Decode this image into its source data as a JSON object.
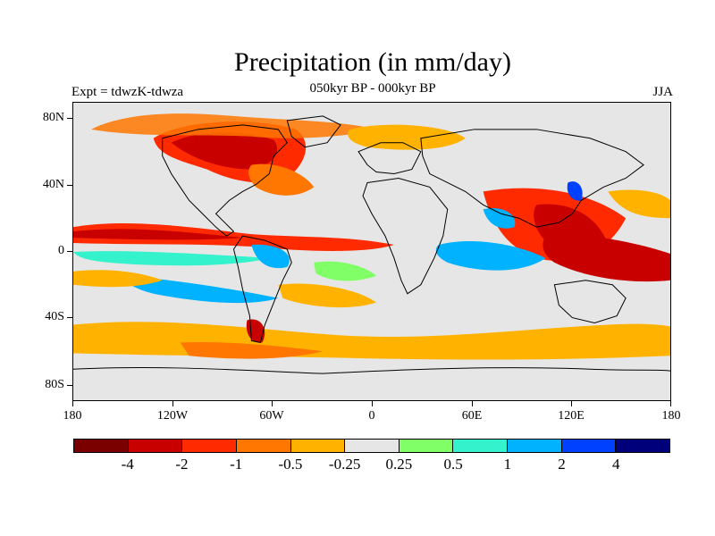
{
  "title": "Precipitation (in mm/day)",
  "subtitle": "050kyr BP - 000kyr BP",
  "left_label": "Expt = tdwzK-tdwza",
  "right_label": "JJA",
  "lat_labels": [
    "80N",
    "40N",
    "0",
    "40S",
    "80S"
  ],
  "lon_labels": [
    "180",
    "120W",
    "60W",
    "0",
    "60E",
    "120E",
    "180"
  ],
  "colorbar": {
    "colors": [
      "#7a0000",
      "#c80000",
      "#ff2a00",
      "#ff7700",
      "#ffb300",
      "#e6e6e6",
      "#80ff66",
      "#33f2cc",
      "#00b2ff",
      "#0040ff",
      "#00007a"
    ],
    "labels": [
      "-4",
      "-2",
      "-1",
      "-0.5",
      "-0.25",
      "0.25",
      "0.5",
      "1",
      "2",
      "4"
    ]
  },
  "colors": {
    "background": "#e6e6e6",
    "coastline": "#000000"
  }
}
